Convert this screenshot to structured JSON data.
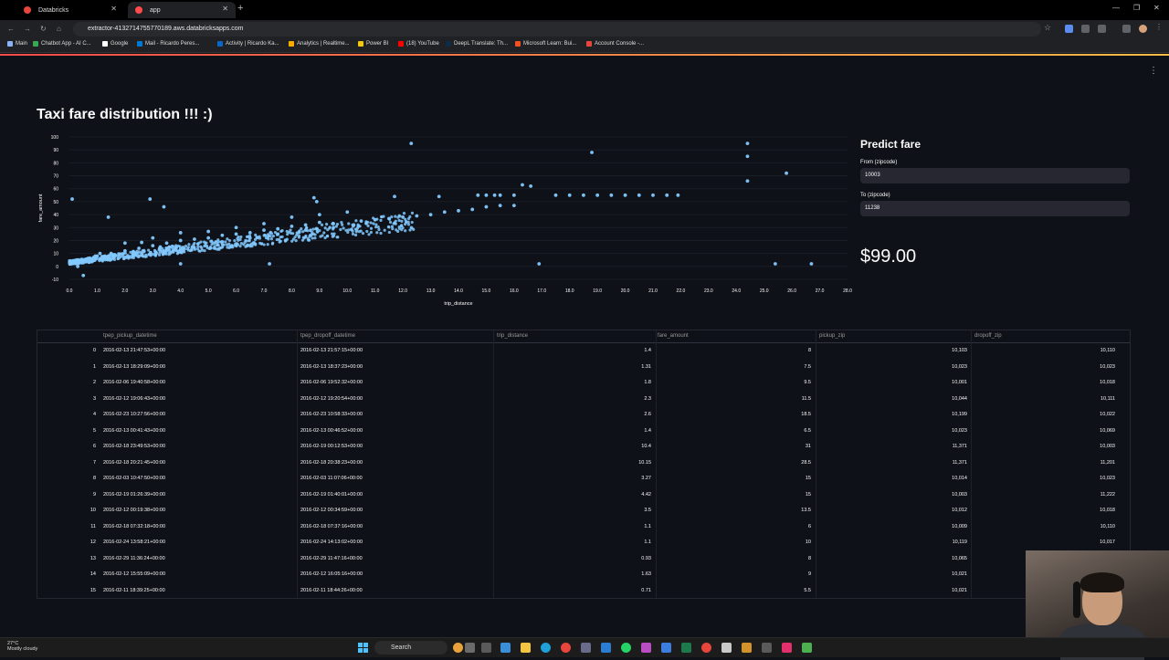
{
  "browser": {
    "tabs": [
      {
        "label": "Databricks",
        "active": false,
        "color": "#e8453c"
      },
      {
        "label": "app",
        "active": true,
        "color": "#ff4b4b"
      }
    ],
    "url": "extractor-4132714755770189.aws.databricksapps.com",
    "bookmarks": [
      {
        "label": "Main",
        "color": "#8ab4f8"
      },
      {
        "label": "Chatbot App - AI C...",
        "color": "#34a853"
      },
      {
        "label": "Google",
        "color": "#ffffff"
      },
      {
        "label": "Mail - Ricardo Peres...",
        "color": "#0078d4"
      },
      {
        "label": "Activity | Ricardo Ka...",
        "color": "#0a66c2"
      },
      {
        "label": "Analytics | Realtime...",
        "color": "#f9ab00"
      },
      {
        "label": "Power BI",
        "color": "#f2c811"
      },
      {
        "label": "(18) YouTube",
        "color": "#ff0000"
      },
      {
        "label": "DeepL Translate: Th...",
        "color": "#0f2b46"
      },
      {
        "label": "Microsoft Learn: Bui...",
        "color": "#f25022"
      },
      {
        "label": "Account Console -...",
        "color": "#e8453c"
      }
    ]
  },
  "app": {
    "title": "Taxi fare distribution !!! :)",
    "predict": {
      "heading": "Predict fare",
      "from_label": "From (zipcode)",
      "from_value": "10003",
      "to_label": "To (zipcode)",
      "to_value": "11238",
      "result": "$99.00"
    }
  },
  "chart_data": {
    "type": "scatter",
    "xlabel": "trip_distance",
    "ylabel": "fare_amount",
    "xlim": [
      0,
      28
    ],
    "ylim": [
      -10,
      100
    ],
    "xticks": [
      "0.0",
      "1.0",
      "2.0",
      "3.0",
      "4.0",
      "5.0",
      "6.0",
      "7.0",
      "8.0",
      "9.0",
      "10.0",
      "11.0",
      "12.0",
      "13.0",
      "14.0",
      "15.0",
      "16.0",
      "17.0",
      "18.0",
      "19.0",
      "20.0",
      "21.0",
      "22.0",
      "23.0",
      "24.0",
      "25.0",
      "26.0",
      "27.0",
      "28.0"
    ],
    "yticks": [
      -10,
      0,
      10,
      20,
      30,
      40,
      50,
      60,
      70,
      80,
      90,
      100
    ],
    "point_color": "#83c9ff",
    "points": [
      [
        0.1,
        52
      ],
      [
        0.3,
        0
      ],
      [
        0.5,
        -7
      ],
      [
        1.4,
        8
      ],
      [
        1.3,
        7.5
      ],
      [
        1.8,
        9.5
      ],
      [
        2.3,
        11.5
      ],
      [
        2.6,
        18.5
      ],
      [
        1.4,
        6.5
      ],
      [
        10.4,
        31
      ],
      [
        10.15,
        28.5
      ],
      [
        3.27,
        15
      ],
      [
        4.42,
        15
      ],
      [
        3.5,
        13.5
      ],
      [
        1.1,
        6
      ],
      [
        1.1,
        10
      ],
      [
        0.93,
        8
      ],
      [
        1.63,
        9
      ],
      [
        0.71,
        5.5
      ],
      [
        1.4,
        38
      ],
      [
        2.9,
        52
      ],
      [
        3.4,
        46
      ],
      [
        4.0,
        2
      ],
      [
        7.2,
        2
      ],
      [
        8.8,
        53
      ],
      [
        8.9,
        50
      ],
      [
        11.7,
        54
      ],
      [
        12.3,
        95
      ],
      [
        13.3,
        54
      ],
      [
        15.3,
        55
      ],
      [
        16.3,
        63
      ],
      [
        16.6,
        62
      ],
      [
        16.9,
        2
      ],
      [
        18.8,
        88
      ],
      [
        24.4,
        95
      ],
      [
        24.4,
        85
      ],
      [
        24.4,
        66
      ],
      [
        25.4,
        2
      ],
      [
        25.8,
        72
      ],
      [
        26.7,
        2
      ],
      [
        14.7,
        55
      ],
      [
        15.0,
        55
      ],
      [
        15.5,
        55
      ],
      [
        16.0,
        55
      ],
      [
        17.5,
        55
      ],
      [
        18.0,
        55
      ],
      [
        18.5,
        55
      ],
      [
        19.0,
        55
      ],
      [
        19.5,
        55
      ],
      [
        20.0,
        55
      ],
      [
        20.5,
        55
      ],
      [
        21.0,
        55
      ],
      [
        21.5,
        55
      ],
      [
        21.9,
        55
      ],
      [
        13.0,
        40
      ],
      [
        13.5,
        42
      ],
      [
        14.0,
        43
      ],
      [
        14.5,
        44
      ],
      [
        15.0,
        46
      ],
      [
        15.5,
        47
      ],
      [
        16.0,
        47
      ],
      [
        12.0,
        38
      ],
      [
        12.5,
        39
      ],
      [
        11.5,
        37
      ],
      [
        11.0,
        36
      ],
      [
        10.5,
        35
      ],
      [
        9.5,
        33
      ],
      [
        9.0,
        34
      ],
      [
        8.5,
        32
      ],
      [
        8.0,
        31
      ],
      [
        7.5,
        29
      ],
      [
        7.0,
        28
      ],
      [
        6.5,
        26
      ],
      [
        6.0,
        25
      ],
      [
        5.5,
        24
      ],
      [
        5.0,
        22
      ],
      [
        4.5,
        21
      ],
      [
        4.0,
        20
      ],
      [
        3.5,
        18
      ],
      [
        3.0,
        16
      ],
      [
        2.5,
        14
      ],
      [
        2.0,
        12
      ],
      [
        1.5,
        10
      ],
      [
        1.0,
        8
      ],
      [
        0.5,
        5
      ],
      [
        5.0,
        27
      ],
      [
        6.0,
        30
      ],
      [
        7.0,
        33
      ],
      [
        8.0,
        38
      ],
      [
        9.0,
        40
      ],
      [
        10.0,
        42
      ],
      [
        3.0,
        22
      ],
      [
        4.0,
        26
      ],
      [
        2.0,
        18
      ],
      [
        5.5,
        19
      ],
      [
        6.5,
        22
      ],
      [
        7.5,
        25
      ],
      [
        8.5,
        28
      ],
      [
        9.5,
        30
      ]
    ]
  },
  "table": {
    "columns": [
      "tpep_pickup_datetime",
      "tpep_dropoff_datetime",
      "trip_distance",
      "fare_amount",
      "pickup_zip",
      "dropoff_zip"
    ],
    "rows": [
      [
        "0",
        "2016-02-13 21:47:53+00:00",
        "2016-02-13 21:57:15+00:00",
        "1.4",
        "8",
        "10,103",
        "10,110"
      ],
      [
        "1",
        "2016-02-13 18:29:09+00:00",
        "2016-02-13 18:37:23+00:00",
        "1.31",
        "7.5",
        "10,023",
        "10,023"
      ],
      [
        "2",
        "2016-02-06 19:40:58+00:00",
        "2016-02-06 19:52:32+00:00",
        "1.8",
        "9.5",
        "10,001",
        "10,018"
      ],
      [
        "3",
        "2016-02-12 19:06:43+00:00",
        "2016-02-12 19:20:54+00:00",
        "2.3",
        "11.5",
        "10,044",
        "10,111"
      ],
      [
        "4",
        "2016-02-23 10:27:56+00:00",
        "2016-02-23 10:58:33+00:00",
        "2.6",
        "18.5",
        "10,199",
        "10,022"
      ],
      [
        "5",
        "2016-02-13 00:41:43+00:00",
        "2016-02-13 00:46:52+00:00",
        "1.4",
        "6.5",
        "10,023",
        "10,069"
      ],
      [
        "6",
        "2016-02-18 23:49:53+00:00",
        "2016-02-19 00:12:53+00:00",
        "10.4",
        "31",
        "11,371",
        "10,003"
      ],
      [
        "7",
        "2016-02-18 20:21:45+00:00",
        "2016-02-18 20:38:23+00:00",
        "10.15",
        "28.5",
        "11,371",
        "11,201"
      ],
      [
        "8",
        "2016-02-03 10:47:50+00:00",
        "2016-02-03 11:07:06+00:00",
        "3.27",
        "15",
        "10,014",
        "10,023"
      ],
      [
        "9",
        "2016-02-19 01:26:39+00:00",
        "2016-02-19 01:40:01+00:00",
        "4.42",
        "15",
        "10,003",
        "11,222"
      ],
      [
        "10",
        "2016-02-12 00:19:38+00:00",
        "2016-02-12 00:34:59+00:00",
        "3.5",
        "13.5",
        "10,012",
        "10,018"
      ],
      [
        "11",
        "2016-02-18 07:32:18+00:00",
        "2016-02-18 07:37:16+00:00",
        "1.1",
        "6",
        "10,009",
        "10,110"
      ],
      [
        "12",
        "2016-02-24 13:58:21+00:00",
        "2016-02-24 14:13:02+00:00",
        "1.1",
        "10",
        "10,119",
        "10,017"
      ],
      [
        "13",
        "2016-02-29 11:36:24+00:00",
        "2016-02-29 11:47:16+00:00",
        "0.93",
        "8",
        "10,065",
        ""
      ],
      [
        "14",
        "2016-02-12 15:55:09+00:00",
        "2016-02-12 16:05:16+00:00",
        "1.63",
        "9",
        "10,021",
        ""
      ],
      [
        "15",
        "2016-02-11 18:39:25+00:00",
        "2016-02-11 18:44:26+00:00",
        "0.71",
        "5.5",
        "10,021",
        ""
      ]
    ]
  },
  "taskbar": {
    "weather_temp": "27°C",
    "weather_text": "Mostly cloudy",
    "search_label": "Search"
  }
}
